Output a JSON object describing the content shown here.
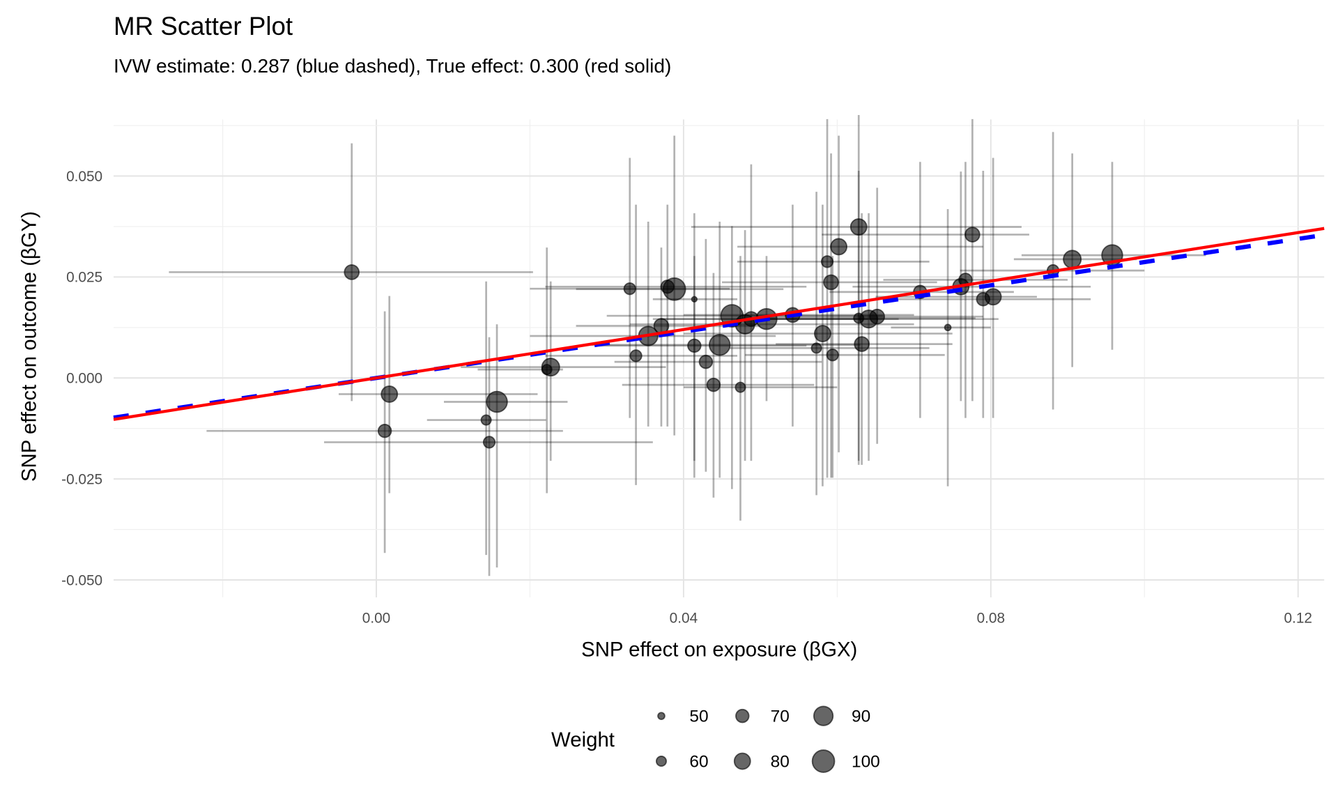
{
  "chart_data": {
    "type": "scatter",
    "title": "MR Scatter Plot",
    "subtitle": "IVW estimate: 0.287 (blue dashed), True effect: 0.300 (red solid)",
    "xlabel": "SNP effect on exposure (βGX)",
    "ylabel": "SNP effect on outcome (βGY)",
    "xlim": [
      -0.0342,
      0.1234
    ],
    "ylim": [
      -0.0543,
      0.064
    ],
    "x_ticks": [
      {
        "value": 0.0,
        "label": "0.00"
      },
      {
        "value": 0.04,
        "label": "0.04"
      },
      {
        "value": 0.08,
        "label": "0.08"
      },
      {
        "value": 0.12,
        "label": "0.12"
      }
    ],
    "y_ticks": [
      {
        "value": 0.05,
        "label": "0.050"
      },
      {
        "value": 0.025,
        "label": "0.025"
      },
      {
        "value": 0.0,
        "label": "0.000"
      },
      {
        "value": -0.025,
        "label": "-0.025"
      },
      {
        "value": -0.05,
        "label": "-0.050"
      }
    ],
    "grid": true,
    "lines": [
      {
        "name": "IVW estimate",
        "slope": 0.287,
        "color": "#0000ff",
        "style": "dashed"
      },
      {
        "name": "True effect",
        "slope": 0.3,
        "color": "#ff0000",
        "style": "solid"
      }
    ],
    "point_fields": [
      "x",
      "y",
      "y_low",
      "y_high",
      "x_low",
      "x_high",
      "weight"
    ],
    "points": [
      [
        -0.0032,
        0.0262,
        -0.0057,
        0.0581,
        -0.027,
        0.0204,
        75
      ],
      [
        0.0011,
        -0.0131,
        -0.0433,
        0.0165,
        -0.0221,
        0.0243,
        70
      ],
      [
        0.0017,
        -0.004,
        -0.0285,
        0.0203,
        -0.0049,
        0.021,
        80
      ],
      [
        0.0143,
        -0.0104,
        -0.0438,
        0.0239,
        0.0066,
        0.0221,
        60
      ],
      [
        0.0147,
        -0.0159,
        -0.049,
        0.0101,
        -0.0068,
        0.036,
        65
      ],
      [
        0.0157,
        -0.0059,
        -0.0469,
        0.0133,
        0.0088,
        0.0249,
        95
      ],
      [
        0.0222,
        0.0021,
        -0.0285,
        0.0323,
        0.0132,
        0.0243,
        60
      ],
      [
        0.0227,
        0.0027,
        -0.0205,
        0.0239,
        0.011,
        0.0377,
        85
      ],
      [
        0.033,
        0.0221,
        -0.0099,
        0.0545,
        0.02,
        0.046,
        65
      ],
      [
        0.0338,
        0.0055,
        -0.0265,
        0.0429,
        0.022,
        0.047,
        65
      ],
      [
        0.0354,
        0.0104,
        -0.012,
        0.0387,
        0.02,
        0.052,
        90
      ],
      [
        0.0371,
        0.0129,
        -0.012,
        0.0323,
        0.026,
        0.05,
        75
      ],
      [
        0.0379,
        0.0226,
        -0.012,
        0.0429,
        0.022,
        0.056,
        70
      ],
      [
        0.0388,
        0.022,
        -0.0142,
        0.06,
        0.026,
        0.053,
        100
      ],
      [
        0.0414,
        0.0195,
        -0.0247,
        0.0408,
        0.036,
        0.047,
        45
      ],
      [
        0.0414,
        0.008,
        -0.0205,
        0.0302,
        0.029,
        0.056,
        70
      ],
      [
        0.0429,
        0.004,
        -0.0232,
        0.0344,
        0.031,
        0.058,
        70
      ],
      [
        0.0439,
        -0.0017,
        -0.0296,
        0.026,
        0.032,
        0.057,
        70
      ],
      [
        0.0447,
        0.0082,
        -0.0247,
        0.0387,
        0.028,
        0.063,
        95
      ],
      [
        0.0463,
        0.0154,
        -0.0275,
        0.0376,
        0.03,
        0.066,
        100
      ],
      [
        0.0474,
        -0.0023,
        -0.0353,
        0.0302,
        0.04,
        0.06,
        60
      ],
      [
        0.048,
        0.0133,
        -0.0205,
        0.0366,
        0.033,
        0.07,
        90
      ],
      [
        0.0488,
        0.0146,
        -0.0205,
        0.0529,
        0.036,
        0.064,
        75
      ],
      [
        0.0508,
        0.0146,
        -0.0057,
        0.0302,
        0.037,
        0.068,
        95
      ],
      [
        0.0542,
        0.0156,
        -0.012,
        0.0429,
        0.04,
        0.07,
        75
      ],
      [
        0.0573,
        0.0074,
        -0.029,
        0.0461,
        0.046,
        0.072,
        60
      ],
      [
        0.0581,
        0.011,
        -0.0268,
        0.0429,
        0.04,
        0.075,
        80
      ],
      [
        0.0587,
        0.0288,
        -0.0247,
        0.0641,
        0.047,
        0.072,
        65
      ],
      [
        0.0592,
        0.0237,
        -0.0247,
        0.0556,
        0.045,
        0.073,
        75
      ],
      [
        0.0594,
        0.0057,
        -0.0247,
        0.0302,
        0.048,
        0.074,
        65
      ],
      [
        0.0602,
        0.0325,
        -0.0184,
        0.06,
        0.047,
        0.079,
        80
      ],
      [
        0.0628,
        0.0148,
        -0.0205,
        0.0513,
        0.05,
        0.078,
        60
      ],
      [
        0.0628,
        0.0374,
        -0.0215,
        0.0651,
        0.041,
        0.084,
        80
      ],
      [
        0.0632,
        0.0084,
        -0.0215,
        0.0408,
        0.052,
        0.075,
        75
      ],
      [
        0.0641,
        0.0146,
        -0.0205,
        0.0408,
        0.048,
        0.081,
        85
      ],
      [
        0.0652,
        0.0152,
        -0.0163,
        0.0471,
        0.052,
        0.079,
        75
      ],
      [
        0.0708,
        0.0213,
        -0.0099,
        0.0535,
        0.059,
        0.083,
        70
      ],
      [
        0.0744,
        0.0125,
        -0.0268,
        0.0418,
        0.067,
        0.08,
        48
      ],
      [
        0.0761,
        0.0226,
        -0.0057,
        0.0511,
        0.062,
        0.093,
        80
      ],
      [
        0.0767,
        0.0243,
        -0.0099,
        0.0535,
        0.066,
        0.09,
        70
      ],
      [
        0.0776,
        0.0355,
        -0.0057,
        0.0641,
        0.058,
        0.085,
        75
      ],
      [
        0.079,
        0.0195,
        -0.0099,
        0.0513,
        0.067,
        0.093,
        70
      ],
      [
        0.0803,
        0.0201,
        -0.0099,
        0.0545,
        0.065,
        0.086,
        80
      ],
      [
        0.0881,
        0.0266,
        -0.0078,
        0.0609,
        0.076,
        0.1,
        65
      ],
      [
        0.0906,
        0.0294,
        0.0027,
        0.0556,
        0.083,
        0.099,
        85
      ],
      [
        0.0958,
        0.0304,
        0.007,
        0.0535,
        0.084,
        0.108,
        95
      ]
    ],
    "legend": {
      "title": "Weight",
      "placement": "bottom",
      "entries": [
        {
          "label": "50",
          "value": 50
        },
        {
          "label": "60",
          "value": 60
        },
        {
          "label": "70",
          "value": 70
        },
        {
          "label": "80",
          "value": 80
        },
        {
          "label": "90",
          "value": 90
        },
        {
          "label": "100",
          "value": 100
        }
      ]
    }
  }
}
